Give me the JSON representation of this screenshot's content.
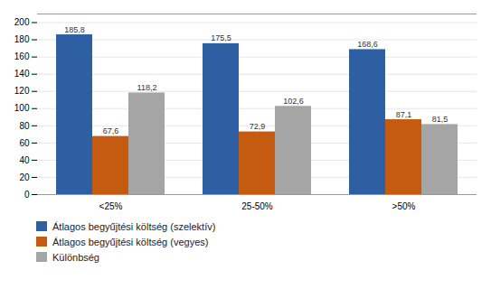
{
  "chart_data": {
    "type": "bar",
    "categories": [
      "<25%",
      "25-50%",
      ">50%"
    ],
    "series": [
      {
        "name": "Átlagos begyűjtési költség (szelektív)",
        "color": "#2E5FA3",
        "values": [
          185.8,
          175.5,
          168.6
        ],
        "value_labels": [
          "185,8",
          "175,5",
          "168,6"
        ]
      },
      {
        "name": "Átlagos begyűjtési költség (vegyes)",
        "color": "#C55A11",
        "values": [
          67.6,
          72.9,
          87.1
        ],
        "value_labels": [
          "67,6",
          "72,9",
          "87,1"
        ]
      },
      {
        "name": "Különbség",
        "color": "#A5A5A5",
        "values": [
          118.2,
          102.6,
          81.5
        ],
        "value_labels": [
          "118,2",
          "102,6",
          "81,5"
        ]
      }
    ],
    "ylim": [
      0,
      210
    ],
    "yticks": [
      0,
      20,
      40,
      60,
      80,
      100,
      120,
      140,
      160,
      180,
      200
    ],
    "grid": true,
    "data_labels": true,
    "legend": "bottom"
  }
}
